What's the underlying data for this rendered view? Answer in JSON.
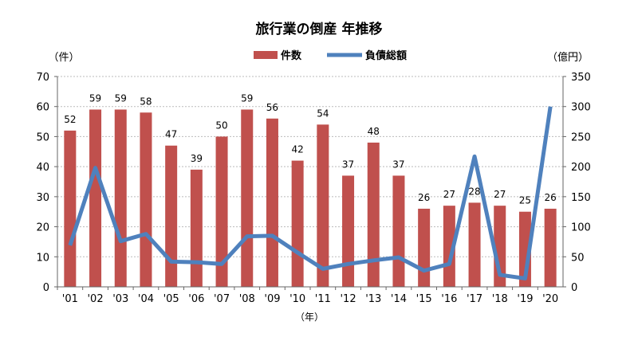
{
  "chart_data": {
    "type": "bar+line",
    "title": "旅行業の倒産 年推移",
    "xlabel": "（年）",
    "ylabel_left": "（件）",
    "ylabel_right": "（億円）",
    "legend": "top-center",
    "categories": [
      "'01",
      "'02",
      "'03",
      "'04",
      "'05",
      "'06",
      "'07",
      "'08",
      "'09",
      "'10",
      "'11",
      "'12",
      "'13",
      "'14",
      "'15",
      "'16",
      "'17",
      "'18",
      "'19",
      "'20"
    ],
    "series": [
      {
        "name": "件数",
        "type": "bar",
        "axis": "left",
        "color": "#c0504d",
        "values": [
          52,
          59,
          59,
          58,
          47,
          39,
          50,
          59,
          56,
          42,
          54,
          37,
          48,
          37,
          26,
          27,
          28,
          27,
          25,
          26
        ]
      },
      {
        "name": "負債総額",
        "type": "line",
        "axis": "right",
        "color": "#4f81bd",
        "values": [
          69,
          198,
          76,
          88,
          42,
          41,
          38,
          84,
          85,
          57,
          30,
          38,
          44,
          49,
          27,
          38,
          217,
          20,
          14,
          300
        ]
      }
    ],
    "ylim_left": [
      0,
      70
    ],
    "yticks_left": [
      "0",
      "10",
      "20",
      "30",
      "40",
      "50",
      "60",
      "70"
    ],
    "ylim_right": [
      0,
      350
    ],
    "yticks_right": [
      "0",
      "50",
      "100",
      "150",
      "200",
      "250",
      "300",
      "350"
    ]
  }
}
